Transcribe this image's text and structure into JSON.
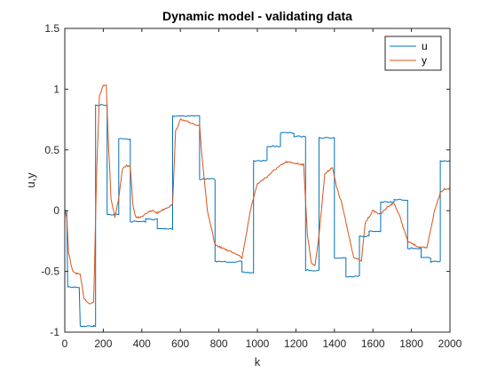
{
  "chart_data": {
    "type": "line",
    "title": "Dynamic model - validating data",
    "xlabel": "k",
    "ylabel": "u,y",
    "xlim": [
      0,
      2000
    ],
    "ylim": [
      -1,
      1.5
    ],
    "xticks": [
      "0",
      "200",
      "400",
      "600",
      "800",
      "1000",
      "1200",
      "1400",
      "1600",
      "1800",
      "2000"
    ],
    "yticks": [
      "-1",
      "-0.5",
      "0",
      "0.5",
      "1",
      "1.5"
    ],
    "grid": false,
    "legend_position": "top-right",
    "series": [
      {
        "name": "u",
        "color": "#0072BD",
        "style": "step",
        "x": [
          0,
          15,
          80,
          150,
          160,
          220,
          280,
          340,
          420,
          480,
          560,
          700,
          780,
          920,
          980,
          1050,
          1120,
          1190,
          1250,
          1320,
          1400,
          1460,
          1530,
          1580,
          1640,
          1710,
          1780,
          1850,
          1900,
          1950,
          2000
        ],
        "values": [
          0,
          -0.63,
          -0.95,
          -0.95,
          0.87,
          -0.03,
          0.59,
          -0.09,
          -0.07,
          -0.15,
          0.78,
          0.26,
          -0.42,
          -0.51,
          0.41,
          0.53,
          0.64,
          0.61,
          -0.49,
          0.6,
          -0.39,
          -0.54,
          -0.21,
          -0.17,
          0.07,
          0.09,
          -0.31,
          -0.39,
          -0.42,
          0.41,
          -1.0
        ]
      },
      {
        "name": "y",
        "color": "#D95319",
        "x": [
          0,
          10,
          20,
          40,
          80,
          100,
          130,
          150,
          165,
          180,
          200,
          215,
          225,
          240,
          260,
          280,
          300,
          320,
          340,
          355,
          370,
          400,
          420,
          460,
          480,
          500,
          560,
          575,
          600,
          640,
          680,
          700,
          715,
          740,
          780,
          820,
          900,
          920,
          970,
          1000,
          1050,
          1100,
          1150,
          1200,
          1240,
          1260,
          1280,
          1300,
          1320,
          1350,
          1390,
          1410,
          1440,
          1460,
          1500,
          1540,
          1560,
          1600,
          1640,
          1680,
          1710,
          1740,
          1780,
          1800,
          1840,
          1880,
          1920,
          1950,
          1970,
          2000
        ],
        "values": [
          0,
          -0.05,
          -0.35,
          -0.5,
          -0.53,
          -0.72,
          -0.77,
          -0.75,
          0.3,
          0.95,
          1.03,
          1.04,
          0.62,
          0.1,
          -0.05,
          0.1,
          0.35,
          0.37,
          0.36,
          0.03,
          -0.06,
          -0.05,
          -0.02,
          0.0,
          -0.02,
          0.0,
          0.05,
          0.65,
          0.75,
          0.73,
          0.71,
          0.7,
          0.4,
          0.0,
          -0.28,
          -0.31,
          -0.36,
          -0.39,
          0.05,
          0.22,
          0.28,
          0.35,
          0.4,
          0.39,
          0.38,
          -0.2,
          -0.43,
          -0.45,
          -0.2,
          0.3,
          0.36,
          0.2,
          0.05,
          -0.1,
          -0.38,
          -0.42,
          -0.1,
          0.0,
          -0.03,
          0.04,
          0.06,
          -0.05,
          -0.25,
          -0.27,
          -0.3,
          -0.31,
          0.0,
          0.15,
          0.18,
          0.18
        ]
      }
    ]
  }
}
